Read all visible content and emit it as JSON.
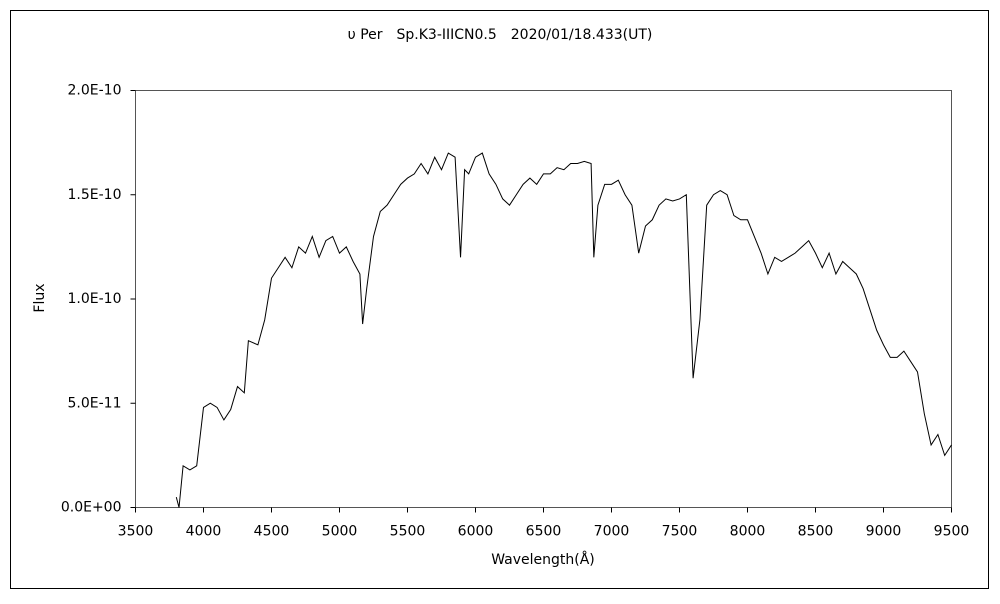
{
  "chart_data": {
    "type": "line",
    "title": "υ Per　Sp.K3-IIICN0.5　2020/01/18.433(UT)",
    "xlabel": "Wavelength(Å)",
    "ylabel": "Flux",
    "x": [
      3800,
      3820,
      3850,
      3900,
      3950,
      4000,
      4050,
      4100,
      4150,
      4200,
      4250,
      4300,
      4330,
      4400,
      4450,
      4500,
      4550,
      4600,
      4650,
      4700,
      4750,
      4800,
      4850,
      4900,
      4950,
      5000,
      5050,
      5100,
      5150,
      5170,
      5200,
      5250,
      5300,
      5350,
      5400,
      5450,
      5500,
      5550,
      5600,
      5650,
      5700,
      5750,
      5800,
      5850,
      5890,
      5920,
      5950,
      6000,
      6050,
      6100,
      6150,
      6200,
      6250,
      6300,
      6350,
      6400,
      6450,
      6500,
      6550,
      6600,
      6650,
      6700,
      6750,
      6800,
      6850,
      6870,
      6900,
      6950,
      7000,
      7050,
      7100,
      7150,
      7200,
      7250,
      7300,
      7350,
      7400,
      7450,
      7500,
      7550,
      7600,
      7650,
      7700,
      7750,
      7800,
      7850,
      7900,
      7950,
      8000,
      8050,
      8100,
      8150,
      8200,
      8250,
      8300,
      8350,
      8400,
      8450,
      8500,
      8550,
      8600,
      8650,
      8700,
      8750,
      8800,
      8850,
      8900,
      8950,
      9000,
      9050,
      9100,
      9150,
      9200,
      9250,
      9300,
      9350,
      9400,
      9450,
      9500
    ],
    "series": [
      {
        "name": "Flux",
        "color": "#000000",
        "values": [
          5e-12,
          0,
          2e-11,
          1.8e-11,
          2e-11,
          4.8e-11,
          5e-11,
          4.8e-11,
          4.2e-11,
          4.7e-11,
          5.8e-11,
          5.5e-11,
          8e-11,
          7.8e-11,
          9e-11,
          1.1e-10,
          1.15e-10,
          1.2e-10,
          1.15e-10,
          1.25e-10,
          1.22e-10,
          1.3e-10,
          1.2e-10,
          1.28e-10,
          1.3e-10,
          1.22e-10,
          1.25e-10,
          1.18e-10,
          1.12e-10,
          8.8e-11,
          1.05e-10,
          1.3e-10,
          1.42e-10,
          1.45e-10,
          1.5e-10,
          1.55e-10,
          1.58e-10,
          1.6e-10,
          1.65e-10,
          1.6e-10,
          1.68e-10,
          1.62e-10,
          1.7e-10,
          1.68e-10,
          1.2e-10,
          1.62e-10,
          1.6e-10,
          1.68e-10,
          1.7e-10,
          1.6e-10,
          1.55e-10,
          1.48e-10,
          1.45e-10,
          1.5e-10,
          1.55e-10,
          1.58e-10,
          1.55e-10,
          1.6e-10,
          1.6e-10,
          1.63e-10,
          1.62e-10,
          1.65e-10,
          1.65e-10,
          1.66e-10,
          1.65e-10,
          1.2e-10,
          1.45e-10,
          1.55e-10,
          1.55e-10,
          1.57e-10,
          1.5e-10,
          1.45e-10,
          1.22e-10,
          1.35e-10,
          1.38e-10,
          1.45e-10,
          1.48e-10,
          1.47e-10,
          1.48e-10,
          1.5e-10,
          6.2e-11,
          9e-11,
          1.45e-10,
          1.5e-10,
          1.52e-10,
          1.5e-10,
          1.4e-10,
          1.38e-10,
          1.38e-10,
          1.3e-10,
          1.22e-10,
          1.12e-10,
          1.2e-10,
          1.18e-10,
          1.2e-10,
          1.22e-10,
          1.25e-10,
          1.28e-10,
          1.22e-10,
          1.15e-10,
          1.22e-10,
          1.12e-10,
          1.18e-10,
          1.15e-10,
          1.12e-10,
          1.05e-10,
          9.5e-11,
          8.5e-11,
          7.8e-11,
          7.2e-11,
          7.2e-11,
          7.5e-11,
          7e-11,
          6.5e-11,
          4.5e-11,
          3e-11,
          3.5e-11,
          2.5e-11,
          3e-11
        ]
      }
    ],
    "xlim": [
      3500,
      9500
    ],
    "xticks": [
      3500,
      4000,
      4500,
      5000,
      5500,
      6000,
      6500,
      7000,
      7500,
      8000,
      8500,
      9000,
      9500
    ],
    "ylim": [
      0,
      2e-10
    ],
    "yticks": [
      {
        "value": 0,
        "label": "0.0E+00"
      },
      {
        "value": 5e-11,
        "label": "5.0E-11"
      },
      {
        "value": 1e-10,
        "label": "1.0E-10"
      },
      {
        "value": 1.5e-10,
        "label": "1.5E-10"
      },
      {
        "value": 2e-10,
        "label": "2.0E-10"
      }
    ],
    "grid": false
  }
}
